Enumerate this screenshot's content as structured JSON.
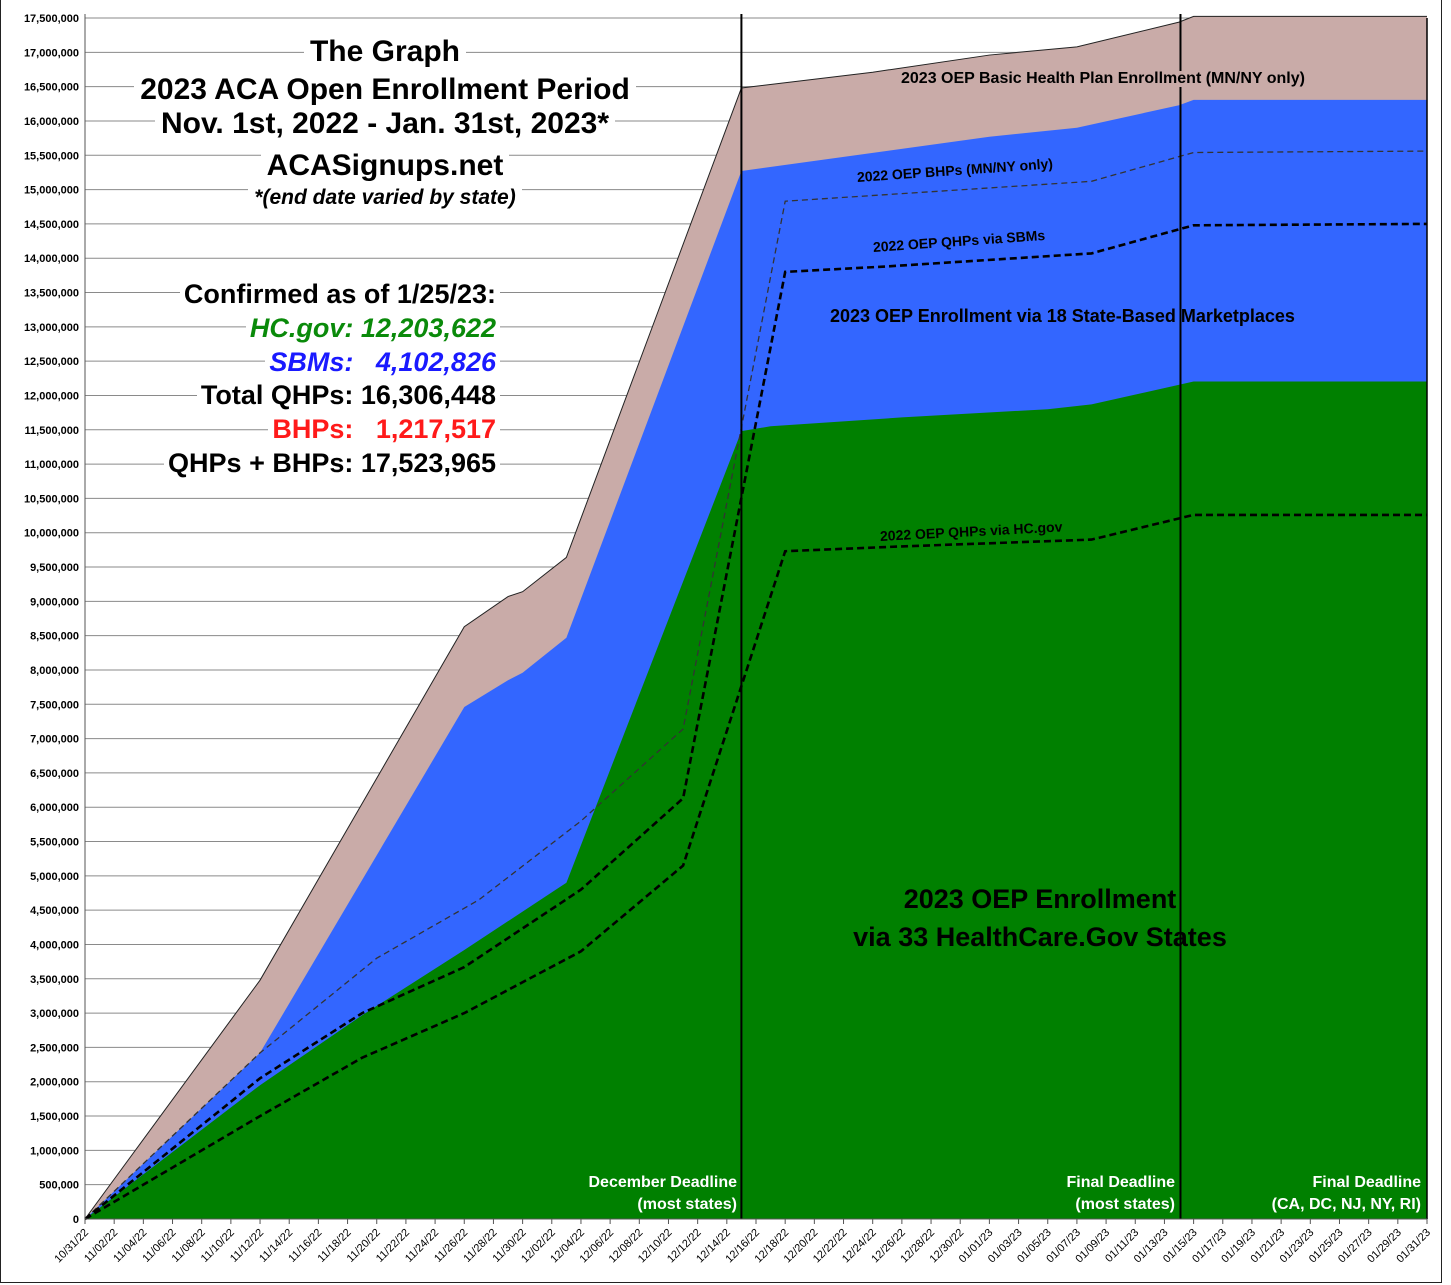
{
  "chart_data": {
    "type": "area",
    "title": [
      "The Graph",
      "2023 ACA Open Enrollment Period",
      "Nov. 1st, 2022 - Jan. 31st, 2023*",
      "ACASignups.net",
      "*(end date varied by state)"
    ],
    "xlabel": "",
    "ylabel": "",
    "ylim": [
      0,
      17500000
    ],
    "xlim": [
      "10/31/22",
      "01/31/23"
    ],
    "grid": true,
    "y_ticks": [
      "0",
      "500,000",
      "1,000,000",
      "1,500,000",
      "2,000,000",
      "2,500,000",
      "3,000,000",
      "3,500,000",
      "4,000,000",
      "4,500,000",
      "5,000,000",
      "5,500,000",
      "6,000,000",
      "6,500,000",
      "7,000,000",
      "7,500,000",
      "8,000,000",
      "8,500,000",
      "9,000,000",
      "9,500,000",
      "10,000,000",
      "10,500,000",
      "11,000,000",
      "11,500,000",
      "12,000,000",
      "12,500,000",
      "13,000,000",
      "13,500,000",
      "14,000,000",
      "14,500,000",
      "15,000,000",
      "15,500,000",
      "16,000,000",
      "16,500,000",
      "17,000,000",
      "17,500,000"
    ],
    "x_ticks": [
      "10/31/22",
      "11/02/22",
      "11/04/22",
      "11/06/22",
      "11/08/22",
      "11/10/22",
      "11/12/22",
      "11/14/22",
      "11/16/22",
      "11/18/22",
      "11/20/22",
      "11/22/22",
      "11/24/22",
      "11/26/22",
      "11/28/22",
      "11/30/22",
      "12/02/22",
      "12/04/22",
      "12/06/22",
      "12/08/22",
      "12/10/22",
      "12/12/22",
      "12/14/22",
      "12/16/22",
      "12/18/22",
      "12/20/22",
      "12/22/22",
      "12/24/22",
      "12/26/22",
      "12/28/22",
      "12/30/22",
      "01/01/23",
      "01/03/23",
      "01/05/23",
      "01/07/23",
      "01/09/23",
      "01/11/23",
      "01/13/23",
      "01/15/23",
      "01/17/23",
      "01/19/23",
      "01/21/23",
      "01/23/23",
      "01/25/23",
      "01/27/23",
      "01/29/23",
      "01/31/23"
    ],
    "stacked_areas": [
      {
        "name": "2023 OEP Basic Health Plan Enrollment (MN/NY only)",
        "color": "#c9aba8",
        "points": [
          [
            "10/31/22",
            0
          ],
          [
            "11/12/22",
            3480000
          ],
          [
            "11/26/22",
            8630000
          ],
          [
            "11/29/22",
            9070000
          ],
          [
            "11/30/22",
            9140000
          ],
          [
            "12/03/22",
            9640000
          ],
          [
            "12/15/22",
            16480000
          ],
          [
            "12/24/22",
            16710000
          ],
          [
            "01/01/23",
            16960000
          ],
          [
            "01/07/23",
            17080000
          ],
          [
            "01/14/23",
            17440000
          ],
          [
            "01/15/23",
            17523965
          ],
          [
            "01/31/23",
            17523965
          ]
        ]
      },
      {
        "name": "2023 OEP Enrollment via 18 State-Based Marketplaces",
        "color": "#3366ff",
        "points": [
          [
            "10/31/22",
            0
          ],
          [
            "11/12/22",
            2420000
          ],
          [
            "11/26/22",
            7460000
          ],
          [
            "11/29/22",
            7850000
          ],
          [
            "11/30/22",
            7960000
          ],
          [
            "12/03/22",
            8470000
          ],
          [
            "12/15/22",
            15270000
          ],
          [
            "01/01/23",
            15770000
          ],
          [
            "01/07/23",
            15900000
          ],
          [
            "01/14/23",
            16230000
          ],
          [
            "01/15/23",
            16306448
          ],
          [
            "01/31/23",
            16306448
          ]
        ]
      },
      {
        "name": "2023 OEP Enrollment via 33 HealthCare.Gov States",
        "color": "#008000",
        "points": [
          [
            "10/31/22",
            0
          ],
          [
            "11/12/22",
            1950000
          ],
          [
            "11/19/22",
            2970000
          ],
          [
            "11/26/22",
            3920000
          ],
          [
            "12/03/22",
            4900000
          ],
          [
            "12/15/22",
            11480000
          ],
          [
            "12/17/22",
            11550000
          ],
          [
            "12/26/22",
            11680000
          ],
          [
            "01/05/23",
            11800000
          ],
          [
            "01/08/23",
            11870000
          ],
          [
            "01/15/23",
            12203622
          ],
          [
            "01/31/23",
            12203622
          ]
        ]
      }
    ],
    "dashed_lines": [
      {
        "name": "2022 OEP BHPs (MN/NY only)",
        "color": "#333333",
        "points": [
          [
            "10/31/22",
            0
          ],
          [
            "11/12/22",
            2420000
          ],
          [
            "11/20/22",
            3800000
          ],
          [
            "11/27/22",
            4650000
          ],
          [
            "12/04/22",
            5800000
          ],
          [
            "12/11/22",
            7140000
          ],
          [
            "12/18/22",
            14830000
          ],
          [
            "01/08/23",
            15120000
          ],
          [
            "01/15/23",
            15540000
          ],
          [
            "01/31/23",
            15560000
          ]
        ]
      },
      {
        "name": "2022 OEP QHPs via SBMs",
        "color": "#000000",
        "points": [
          [
            "10/31/22",
            0
          ],
          [
            "11/12/22",
            2050000
          ],
          [
            "11/19/22",
            3000000
          ],
          [
            "11/26/22",
            3670000
          ],
          [
            "12/04/22",
            4800000
          ],
          [
            "12/11/22",
            6130000
          ],
          [
            "12/18/22",
            13800000
          ],
          [
            "12/25/22",
            13880000
          ],
          [
            "01/08/23",
            14070000
          ],
          [
            "01/15/23",
            14480000
          ],
          [
            "01/31/23",
            14500000
          ]
        ]
      },
      {
        "name": "2022 OEP QHPs via HC.gov",
        "color": "#000000",
        "points": [
          [
            "10/31/22",
            0
          ],
          [
            "11/12/22",
            1500000
          ],
          [
            "11/19/22",
            2350000
          ],
          [
            "11/26/22",
            3000000
          ],
          [
            "12/04/22",
            3900000
          ],
          [
            "12/11/22",
            5150000
          ],
          [
            "12/18/22",
            9730000
          ],
          [
            "12/26/22",
            9800000
          ],
          [
            "01/08/23",
            9900000
          ],
          [
            "01/15/23",
            10260000
          ],
          [
            "01/31/23",
            10260000
          ]
        ]
      }
    ],
    "annotations": {
      "bhp_2023": "2023 OEP Basic Health Plan Enrollment (MN/NY only)",
      "bhp_2022": "2022 OEP BHPs (MN/NY only)",
      "sbm_2022": "2022 OEP QHPs via SBMs",
      "sbm_2023": "2023 OEP Enrollment via 18 State-Based Marketplaces",
      "hc_2022": "2022 OEP QHPs via HC.gov",
      "hc_2023_line1": "2023 OEP Enrollment",
      "hc_2023_line2": "via 33 HealthCare.Gov States"
    },
    "deadlines": [
      {
        "line1": "December Deadline",
        "line2": "(most states)"
      },
      {
        "line1": "Final Deadline",
        "line2": "(most states)"
      },
      {
        "line1": "Final Deadline",
        "line2": "(CA, DC, NJ, NY, RI)"
      }
    ],
    "confirmed": {
      "heading": "Confirmed as of 1/25/23:",
      "hc_gov": "HC.gov: 12,203,622",
      "sbms": "SBMs:   4,102,826",
      "total_qhps": "Total QHPs: 16,306,448",
      "bhps": "BHPs:   1,217,517",
      "qhps_bhps": "QHPs + BHPs: 17,523,965",
      "colors": {
        "hc_gov": "#0a8a0a",
        "sbms": "#1a1aff",
        "total_qhps": "#000000",
        "bhps": "#ff1a1a",
        "qhps_bhps": "#000000"
      }
    }
  }
}
